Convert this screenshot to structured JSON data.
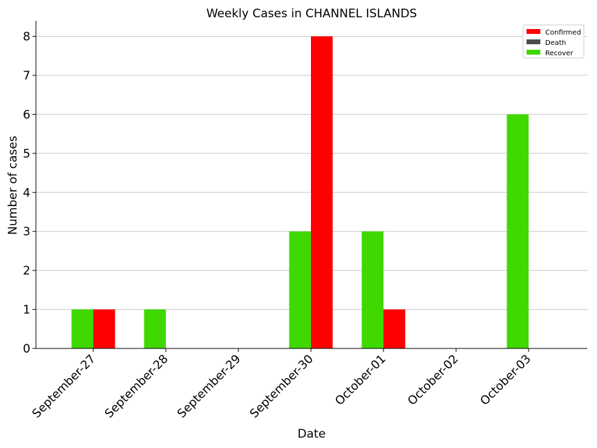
{
  "chart_data": {
    "type": "bar",
    "title": "Weekly Cases in CHANNEL ISLANDS",
    "xlabel": "Date",
    "ylabel": "Number of cases",
    "categories": [
      "September-27",
      "September-28",
      "September-29",
      "September-30",
      "October-01",
      "October-02",
      "October-03"
    ],
    "series": [
      {
        "name": "Confirmed",
        "color": "#ff0000",
        "values": [
          1,
          0,
          0,
          8,
          1,
          0,
          0
        ]
      },
      {
        "name": "Death",
        "color": "#4d4d4d",
        "values": [
          0,
          0,
          0,
          0,
          0,
          0,
          0
        ]
      },
      {
        "name": "Recover",
        "color": "#3fd800",
        "values": [
          1,
          1,
          0,
          3,
          3,
          0,
          6
        ]
      }
    ],
    "ylim": [
      0,
      8.4
    ],
    "yticks": [
      0,
      1,
      2,
      3,
      4,
      5,
      6,
      7,
      8
    ],
    "grid": "horizontal",
    "legend_position": "top-right"
  }
}
